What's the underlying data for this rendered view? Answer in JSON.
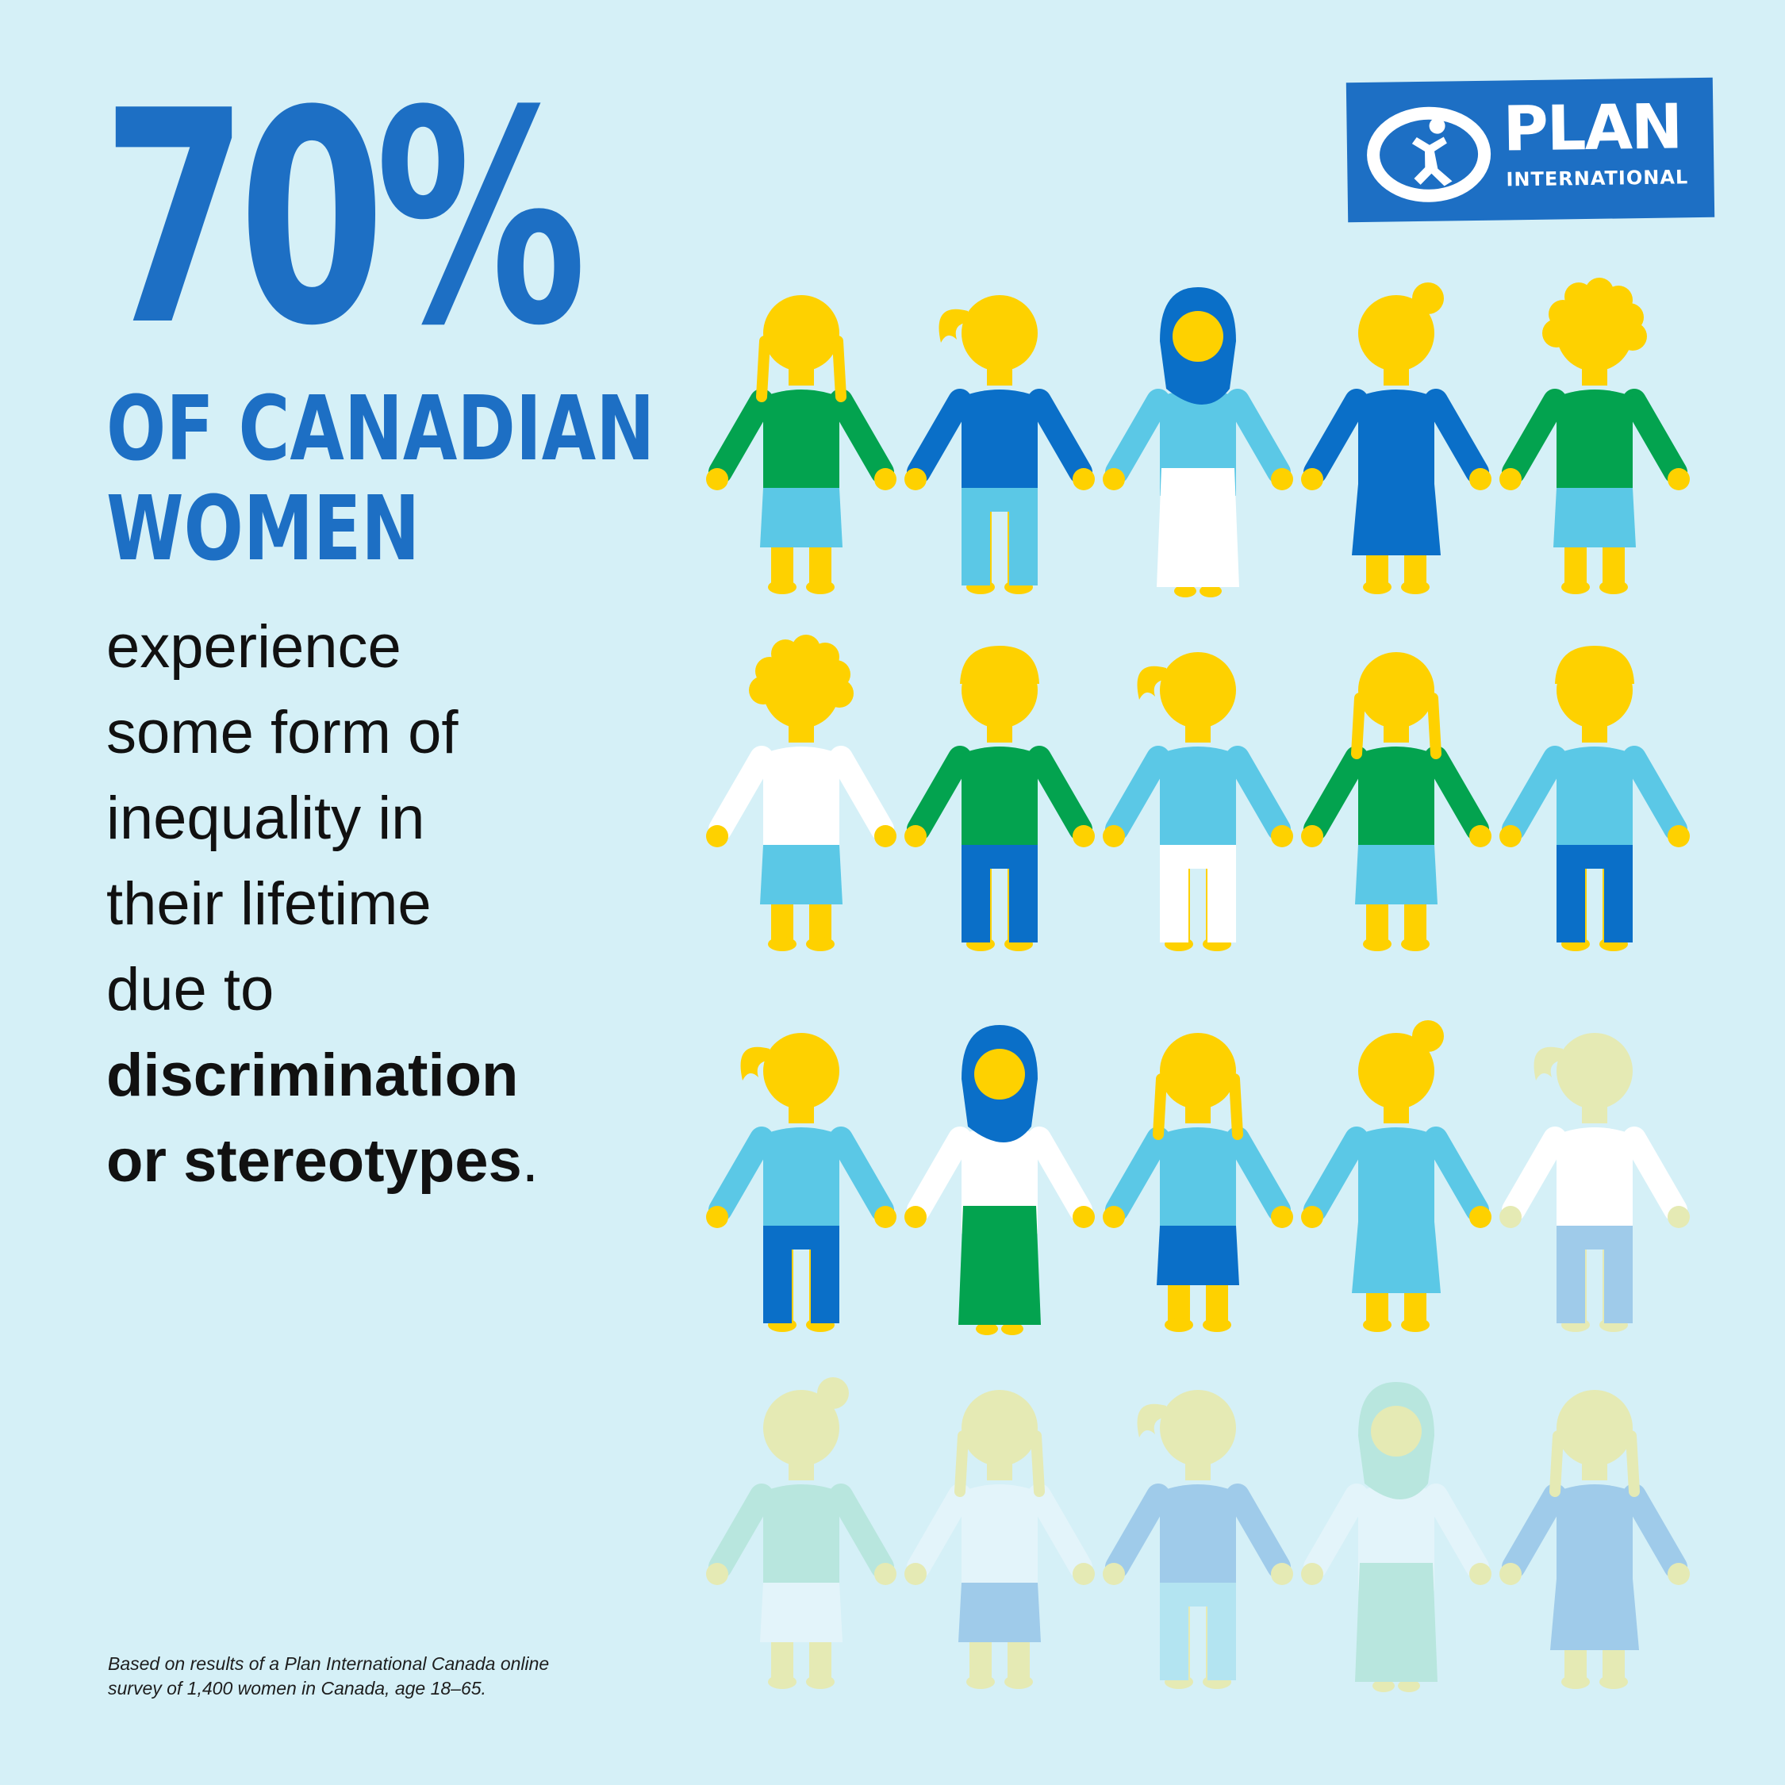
{
  "headline": {
    "stat": "70%",
    "line1": "OF CANADIAN",
    "line2": "WOMEN"
  },
  "body": {
    "lines": [
      "experience",
      "some form of",
      "inequality in",
      "their lifetime",
      "due to"
    ],
    "bold1": "discrimination",
    "bold2": "or stereotypes",
    "end": "."
  },
  "footnote": {
    "line1": "Based on results of a Plan International Canada online",
    "line2": "survey of 1,400 women in Canada, age 18–65."
  },
  "logo": {
    "name": "PLAN",
    "sub": "INTERNATIONAL",
    "icon": "plan-child-logo-icon"
  },
  "pictogram": {
    "total": 20,
    "highlighted": 14,
    "icon": "woman-figure-icon",
    "colors": {
      "skin": "#fed100",
      "blue": "#0a6fc8",
      "light_blue": "#5bc8e6",
      "green": "#03a34f",
      "white": "#ffffff",
      "background": "#d5f0f7"
    }
  }
}
